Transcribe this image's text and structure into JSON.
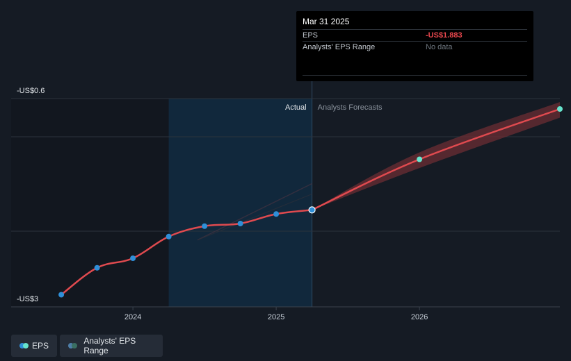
{
  "chart_data": {
    "type": "line",
    "y_axis": {
      "top_label": "-US$0.6",
      "bottom_label": "-US$3",
      "range": [
        -3,
        -0.6
      ]
    },
    "x_axis": {
      "tick_labels": [
        "2024",
        "2025",
        "2026"
      ],
      "ticks": [
        2024.0,
        2025.0,
        2026.0
      ],
      "range": [
        2023.15,
        2026.98
      ]
    },
    "grid": true,
    "regions": {
      "actual_label": "Actual",
      "forecast_label": "Analysts Forecasts",
      "divider_x": 2025.25,
      "shade_from_x": 2024.25
    },
    "series": [
      {
        "name": "EPS",
        "kind": "actual",
        "points": [
          {
            "x": 2023.5,
            "y": -2.86
          },
          {
            "x": 2023.75,
            "y": -2.55
          },
          {
            "x": 2024.0,
            "y": -2.44
          },
          {
            "x": 2024.25,
            "y": -2.19
          },
          {
            "x": 2024.5,
            "y": -2.07
          },
          {
            "x": 2024.75,
            "y": -2.04
          },
          {
            "x": 2025.0,
            "y": -1.93
          },
          {
            "x": 2025.25,
            "y": -1.883
          }
        ]
      },
      {
        "name": "EPS",
        "kind": "forecast",
        "points": [
          {
            "x": 2025.25,
            "y": -1.883
          },
          {
            "x": 2026.0,
            "y": -1.3
          },
          {
            "x": 2026.98,
            "y": -0.72
          }
        ]
      },
      {
        "name": "Analysts' EPS Range",
        "kind": "range",
        "low": [
          {
            "x": 2025.25,
            "y": -1.883
          },
          {
            "x": 2026.0,
            "y": -1.4
          },
          {
            "x": 2026.98,
            "y": -0.82
          }
        ],
        "high": [
          {
            "x": 2025.25,
            "y": -1.883
          },
          {
            "x": 2026.0,
            "y": -1.22
          },
          {
            "x": 2026.98,
            "y": -0.64
          }
        ]
      }
    ]
  },
  "tooltip": {
    "date": "Mar 31 2025",
    "eps_label": "EPS",
    "eps_value": "-US$1.883",
    "range_label": "Analysts' EPS Range",
    "range_value": "No data"
  },
  "legend": {
    "eps_label": "EPS",
    "range_label": "Analysts' EPS Range"
  },
  "colors": {
    "background": "#151b24",
    "actual_region": "#11283c",
    "eps_line": "#e04a4f",
    "actual_marker": "#2f8fd8",
    "forecast_marker": "#67e4cd",
    "range_band": "#6b2d33",
    "grid": "#2c333d",
    "legend_dot_eps_a": "#2f8fd8",
    "legend_dot_eps_b": "#67e4cd",
    "legend_dot_range_a": "#4e7ea8",
    "legend_dot_range_b": "#3a6f63"
  }
}
